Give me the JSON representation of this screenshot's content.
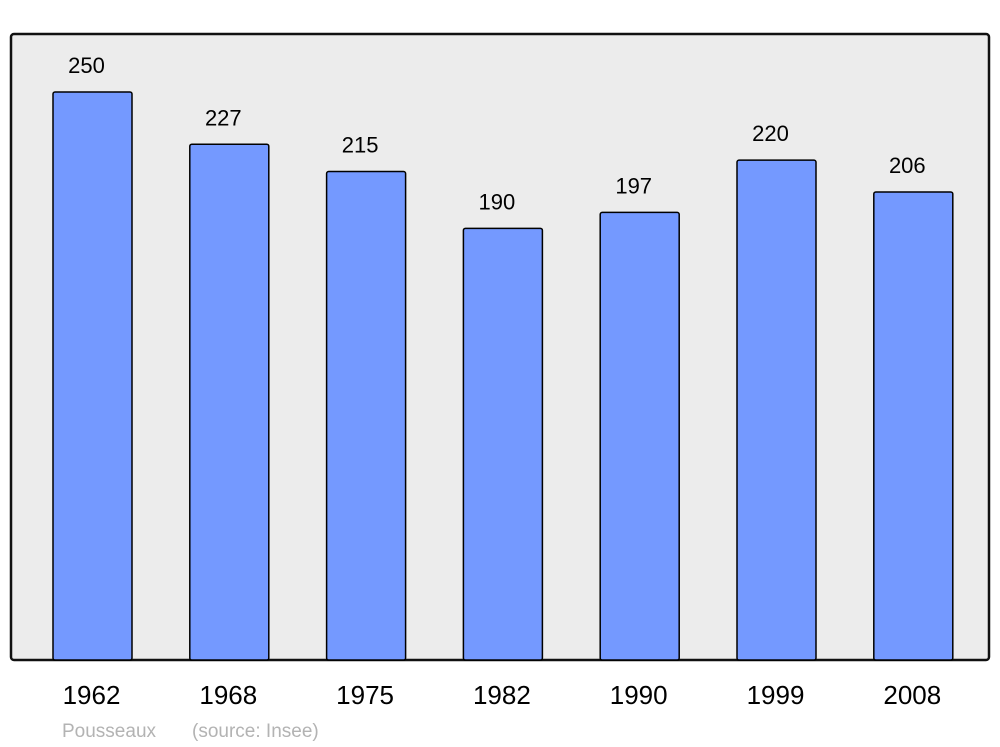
{
  "chart_data": {
    "type": "bar",
    "categories": [
      "1962",
      "1968",
      "1975",
      "1982",
      "1990",
      "1999",
      "2008"
    ],
    "values": [
      250,
      227,
      215,
      190,
      197,
      220,
      206
    ],
    "value_labels": [
      "250",
      "227",
      "215",
      "190",
      "197",
      "220",
      "206"
    ],
    "title": "",
    "xlabel": "",
    "ylabel": "",
    "ylim": [
      0,
      250
    ],
    "grid": false,
    "legend": "none",
    "bar_color": "#7499ff",
    "plot_background": "#ececec",
    "footer": {
      "place": "Pousseaux",
      "source": "(source: Insee)"
    }
  }
}
